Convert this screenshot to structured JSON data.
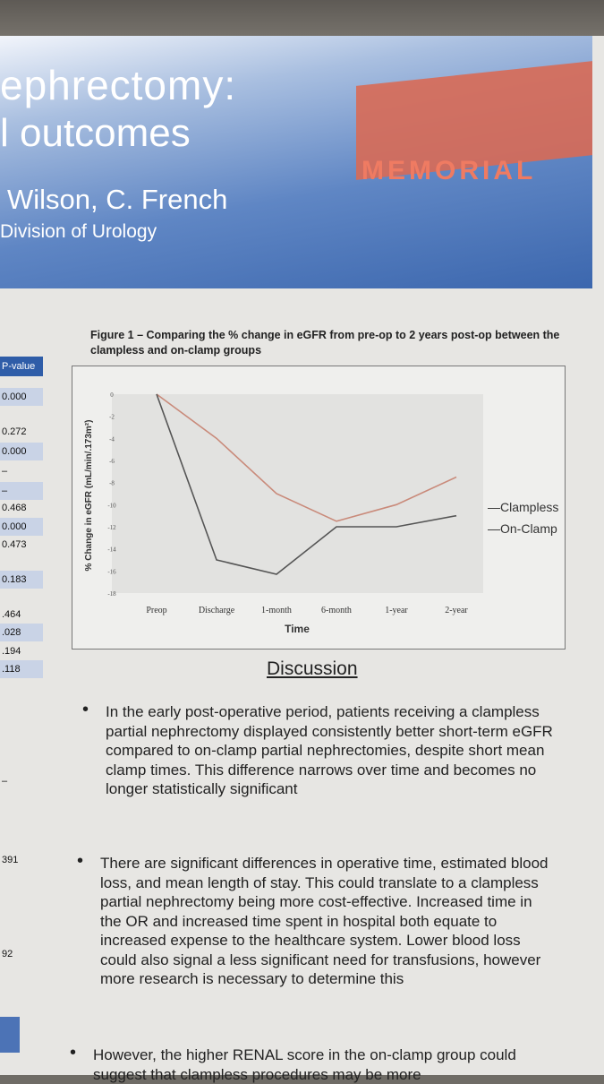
{
  "header": {
    "title_line1": "ephrectomy:",
    "title_line2": "l outcomes",
    "authors": "Wilson, C. French",
    "division": "Division of Urology",
    "logo": "MEMORIAL"
  },
  "table": {
    "header": "P-value",
    "values": [
      "0.000",
      "0.272",
      "0.000",
      "–",
      "–",
      "0.468",
      "0.000",
      "0.473",
      "0.183",
      ".464",
      ".028",
      ".194",
      ".118",
      "–",
      "391",
      "92"
    ]
  },
  "figure": {
    "title": "Figure 1 – Comparing the % change in eGFR from pre-op to 2 years post-op between the clampless and on-clamp groups"
  },
  "chart_data": {
    "type": "line",
    "categories": [
      "Preop",
      "Discharge",
      "1-month",
      "6-month",
      "1-year",
      "2-year"
    ],
    "series": [
      {
        "name": "Clampless",
        "values": [
          0,
          -4,
          -9,
          -11.5,
          -10,
          -7.5
        ],
        "color": "#c98a7a"
      },
      {
        "name": "On-Clamp",
        "values": [
          0,
          -15,
          -16.3,
          -12,
          -12,
          -11
        ],
        "color": "#555555"
      }
    ],
    "xlabel": "Time",
    "ylabel": "% Change in eGFR (mL/min/.173m²)",
    "ylim": [
      -18,
      0
    ],
    "yticks": [
      "0",
      "-2",
      "-4",
      "-6",
      "-8",
      "-10",
      "-12",
      "-14",
      "-16",
      "-18"
    ],
    "legend_position": "right"
  },
  "discussion": {
    "title": "Discussion",
    "bullets": [
      "In the early post-operative period, patients receiving a clampless partial nephrectomy displayed consistently better short-term eGFR compared to on-clamp partial nephrectomies, despite short mean clamp times. This difference narrows over time and becomes no longer statistically significant",
      "There are significant differences in operative time, estimated blood loss, and mean length of stay. This could translate to a clampless partial nephrectomy being more cost-effective. Increased time in the OR and increased time spent in hospital both equate to increased expense to the healthcare system. Lower blood loss could also signal a less significant need for transfusions, however more research is necessary to determine this",
      "However, the higher RENAL score in the on-clamp group could suggest that clampless procedures may be more"
    ]
  }
}
